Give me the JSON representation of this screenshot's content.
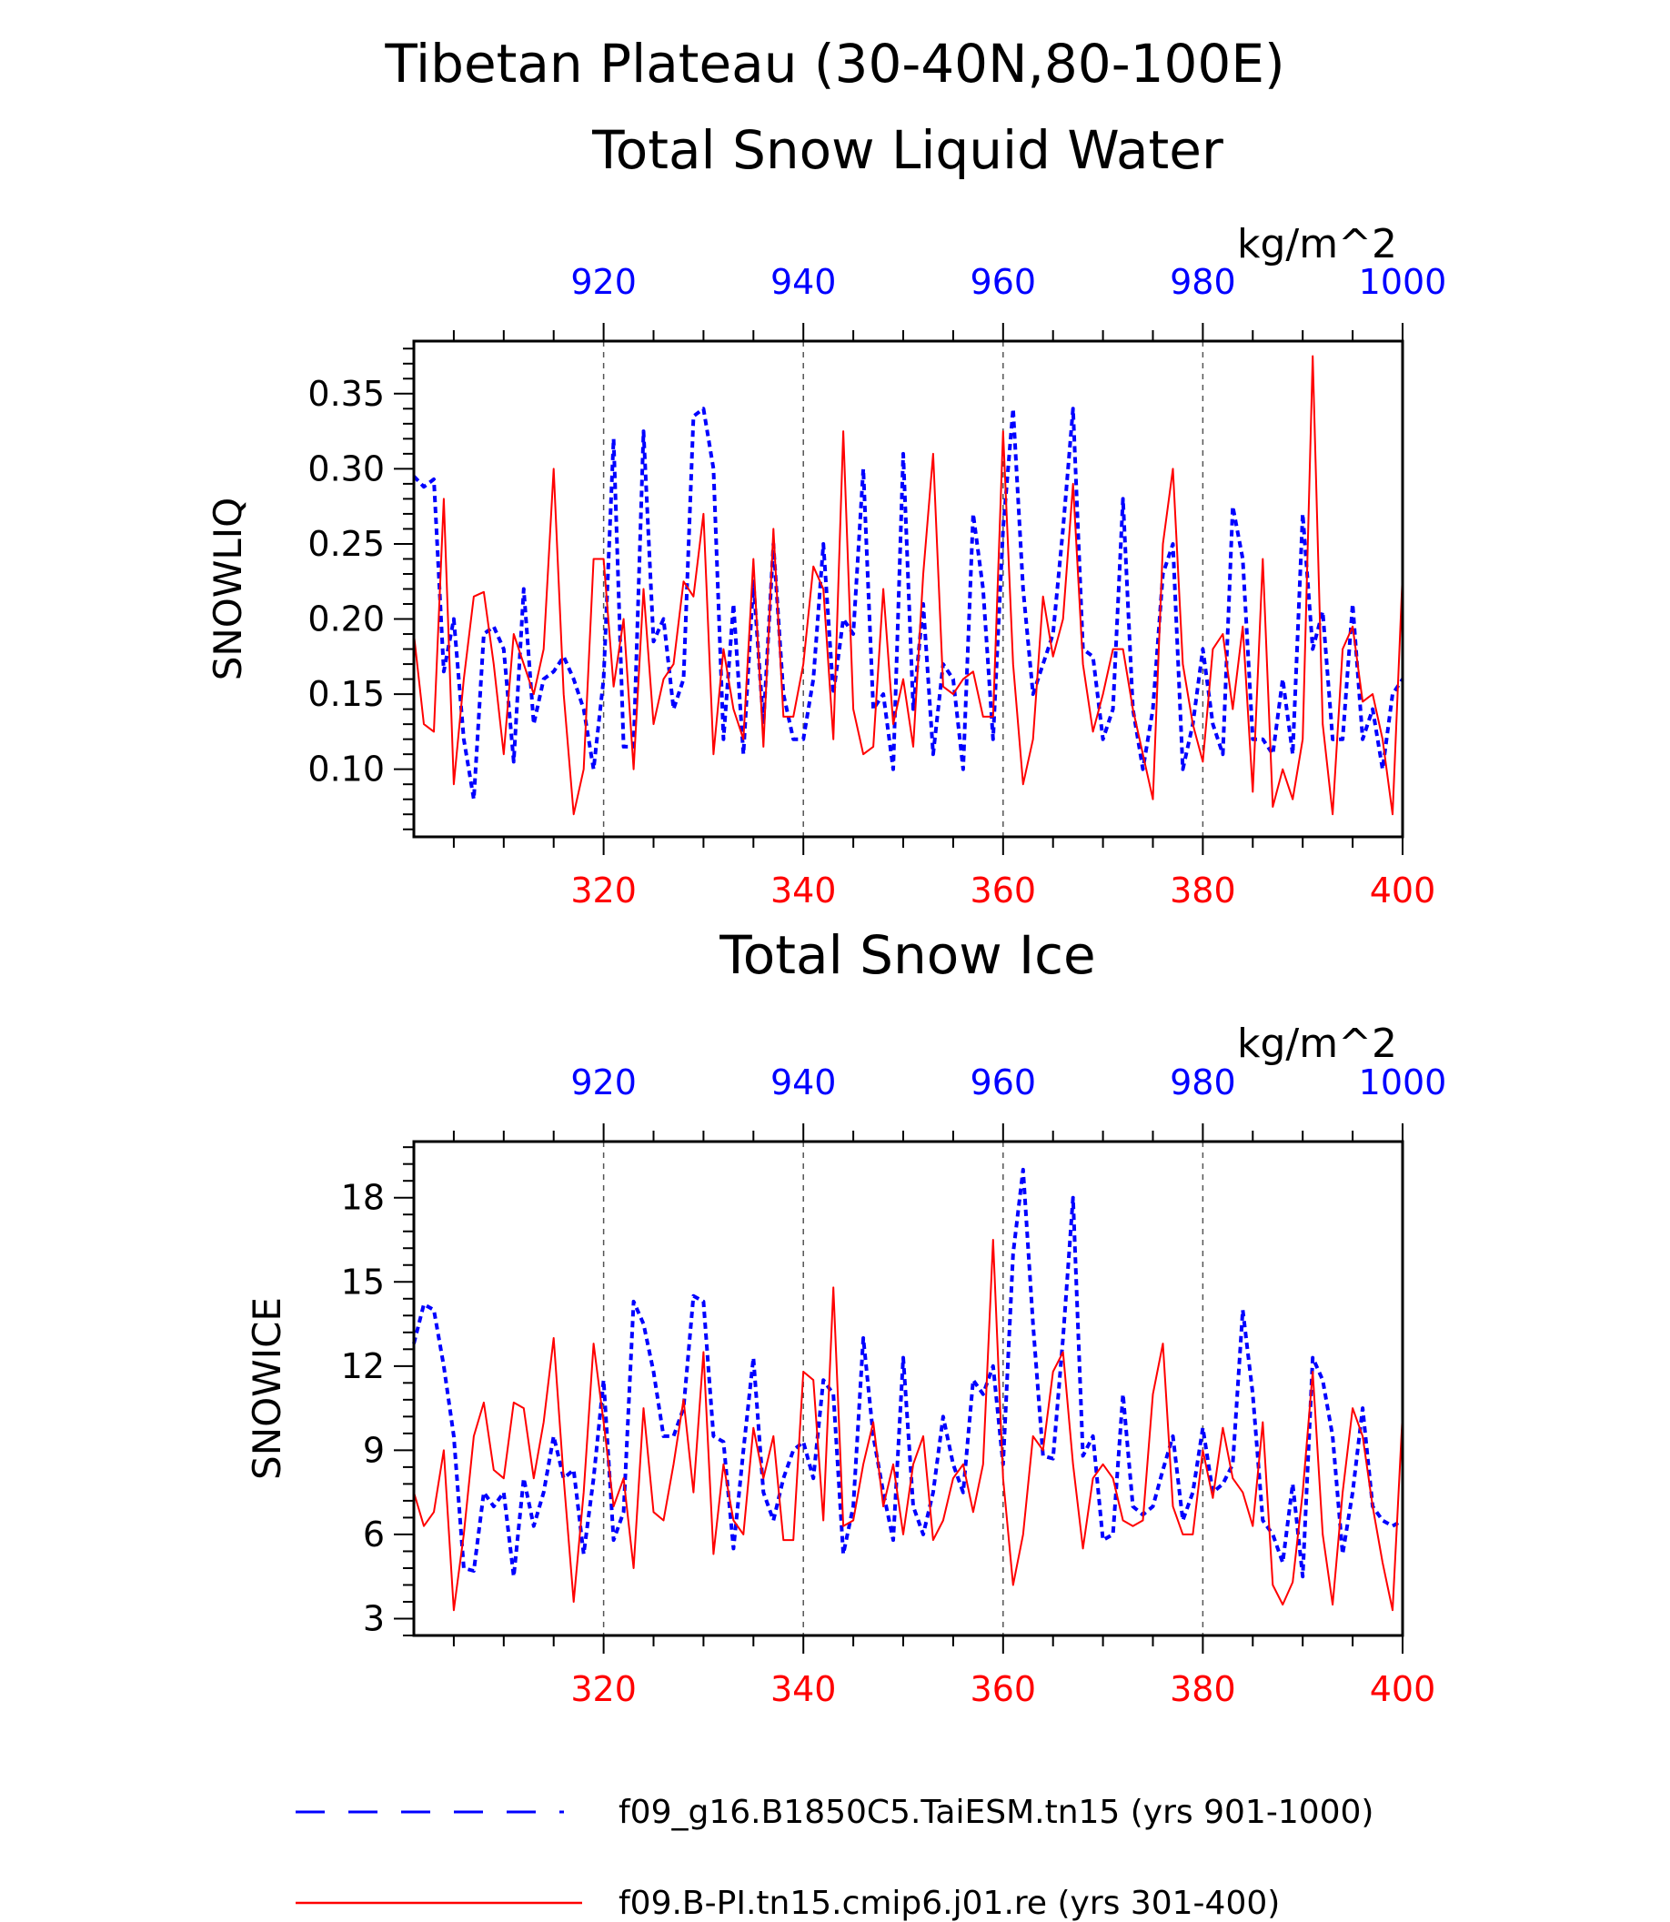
{
  "figure": {
    "title_line1": "Tibetan Plateau (30-40N,80-100E)"
  },
  "colors": {
    "series_blue": "#0000ff",
    "series_red": "#ff0000",
    "axis": "#000000",
    "grid": "#555555"
  },
  "legend": [
    {
      "label": "f09_g16.B1850C5.TaiESM.tn15 (yrs 901-1000)",
      "color": "#0000ff",
      "style": "dashed"
    },
    {
      "label": "f09.B-PI.tn15.cmip6.j01.re (yrs 301-400)",
      "color": "#ff0000",
      "style": "solid"
    }
  ],
  "chart_data": [
    {
      "type": "line",
      "title": "Total Snow Liquid Water",
      "ylabel": "SNOWLIQ",
      "units": "kg/m^2",
      "ylim": [
        0.055,
        0.385
      ],
      "yticks": [
        "0.10",
        "0.15",
        "0.20",
        "0.25",
        "0.30",
        "0.35"
      ],
      "bottom_axis": {
        "xlim": [
          301,
          400
        ],
        "ticks": [
          "320",
          "340",
          "360",
          "380",
          "400"
        ],
        "color": "#ff0000"
      },
      "top_axis": {
        "xlim": [
          901,
          1000
        ],
        "ticks": [
          "920",
          "940",
          "960",
          "980",
          "1000"
        ],
        "color": "#0000ff"
      },
      "grid": "vertical dashed at labeled ticks",
      "series": [
        {
          "name": "f09_g16.B1850C5.TaiESM.tn15 (yrs 901-1000)",
          "color": "#0000ff",
          "style": "dashed",
          "values": [
            0.295,
            0.288,
            0.293,
            0.165,
            0.2,
            0.12,
            0.08,
            0.19,
            0.195,
            0.18,
            0.105,
            0.22,
            0.13,
            0.16,
            0.165,
            0.175,
            0.16,
            0.14,
            0.1,
            0.16,
            0.32,
            0.115,
            0.115,
            0.325,
            0.185,
            0.2,
            0.14,
            0.16,
            0.335,
            0.34,
            0.3,
            0.12,
            0.21,
            0.11,
            0.225,
            0.13,
            0.25,
            0.15,
            0.12,
            0.12,
            0.16,
            0.25,
            0.15,
            0.2,
            0.19,
            0.3,
            0.14,
            0.15,
            0.1,
            0.31,
            0.14,
            0.21,
            0.11,
            0.17,
            0.16,
            0.1,
            0.27,
            0.22,
            0.12,
            0.26,
            0.34,
            0.22,
            0.15,
            0.17,
            0.19,
            0.26,
            0.34,
            0.18,
            0.175,
            0.12,
            0.14,
            0.28,
            0.14,
            0.1,
            0.14,
            0.23,
            0.25,
            0.1,
            0.13,
            0.18,
            0.13,
            0.11,
            0.275,
            0.24,
            0.12,
            0.12,
            0.11,
            0.16,
            0.11,
            0.27,
            0.18,
            0.205,
            0.12,
            0.12,
            0.21,
            0.12,
            0.14,
            0.1,
            0.15,
            0.16
          ]
        },
        {
          "name": "f09.B-PI.tn15.cmip6.j01.re (yrs 301-400)",
          "color": "#ff0000",
          "style": "solid",
          "values": [
            0.19,
            0.13,
            0.125,
            0.28,
            0.09,
            0.16,
            0.215,
            0.218,
            0.17,
            0.11,
            0.19,
            0.17,
            0.15,
            0.18,
            0.3,
            0.15,
            0.07,
            0.1,
            0.24,
            0.24,
            0.155,
            0.2,
            0.1,
            0.22,
            0.13,
            0.16,
            0.17,
            0.225,
            0.215,
            0.27,
            0.11,
            0.18,
            0.14,
            0.12,
            0.24,
            0.115,
            0.26,
            0.135,
            0.135,
            0.17,
            0.235,
            0.22,
            0.12,
            0.325,
            0.14,
            0.11,
            0.115,
            0.22,
            0.13,
            0.16,
            0.115,
            0.23,
            0.31,
            0.155,
            0.15,
            0.16,
            0.165,
            0.135,
            0.135,
            0.325,
            0.17,
            0.09,
            0.12,
            0.215,
            0.175,
            0.2,
            0.29,
            0.17,
            0.125,
            0.15,
            0.18,
            0.18,
            0.14,
            0.11,
            0.08,
            0.25,
            0.3,
            0.17,
            0.13,
            0.105,
            0.18,
            0.19,
            0.14,
            0.195,
            0.085,
            0.24,
            0.075,
            0.1,
            0.08,
            0.12,
            0.375,
            0.13,
            0.07,
            0.18,
            0.195,
            0.145,
            0.15,
            0.12,
            0.07,
            0.23
          ]
        }
      ]
    },
    {
      "type": "line",
      "title": "Total Snow Ice",
      "ylabel": "SNOWICE",
      "units": "kg/m^2",
      "ylim": [
        2.4,
        20.0
      ],
      "yticks": [
        "3",
        "6",
        "9",
        "12",
        "15",
        "18"
      ],
      "bottom_axis": {
        "xlim": [
          301,
          400
        ],
        "ticks": [
          "320",
          "340",
          "360",
          "380",
          "400"
        ],
        "color": "#ff0000"
      },
      "top_axis": {
        "xlim": [
          901,
          1000
        ],
        "ticks": [
          "920",
          "940",
          "960",
          "980",
          "1000"
        ],
        "color": "#0000ff"
      },
      "grid": "vertical dashed at labeled ticks",
      "series": [
        {
          "name": "f09_g16.B1850C5.TaiESM.tn15 (yrs 901-1000)",
          "color": "#0000ff",
          "style": "dashed",
          "values": [
            12.8,
            14.2,
            14.0,
            12.0,
            9.5,
            4.8,
            4.7,
            7.5,
            7.0,
            7.5,
            4.5,
            8.0,
            6.3,
            7.5,
            9.5,
            8.0,
            8.3,
            5.3,
            8.0,
            11.5,
            5.8,
            6.8,
            14.3,
            13.5,
            11.8,
            9.5,
            9.5,
            10.5,
            14.5,
            14.3,
            9.5,
            9.3,
            5.5,
            9.0,
            12.3,
            7.5,
            6.5,
            8.0,
            9.0,
            9.3,
            8.0,
            11.5,
            11.0,
            5.3,
            7.0,
            13.0,
            9.5,
            7.5,
            5.8,
            12.3,
            7.0,
            6.0,
            7.5,
            10.2,
            8.5,
            7.5,
            11.5,
            11.0,
            12.0,
            8.5,
            16.0,
            19.0,
            13.5,
            8.8,
            8.7,
            13.0,
            18.0,
            8.8,
            9.5,
            5.8,
            6.0,
            11.0,
            7.0,
            6.7,
            7.0,
            8.3,
            9.5,
            6.5,
            7.5,
            9.8,
            7.5,
            7.8,
            8.5,
            14.0,
            11.0,
            6.5,
            6.0,
            5.0,
            7.8,
            4.5,
            12.3,
            11.5,
            9.5,
            5.3,
            7.5,
            10.5,
            7.0,
            6.5,
            6.3,
            6.5
          ]
        },
        {
          "name": "f09.B-PI.tn15.cmip6.j01.re (yrs 301-400)",
          "color": "#ff0000",
          "style": "solid",
          "values": [
            7.5,
            6.3,
            6.8,
            9.0,
            3.3,
            6.0,
            9.5,
            10.7,
            8.3,
            8.0,
            10.7,
            10.5,
            8.0,
            10.0,
            13.0,
            8.0,
            3.6,
            7.5,
            12.8,
            10.0,
            7.0,
            8.0,
            4.8,
            10.5,
            6.8,
            6.5,
            8.5,
            10.8,
            7.5,
            12.5,
            5.3,
            8.5,
            6.5,
            6.0,
            9.8,
            8.0,
            9.5,
            5.8,
            5.8,
            11.8,
            11.5,
            6.5,
            14.8,
            6.3,
            6.5,
            8.5,
            10.0,
            7.0,
            8.5,
            6.0,
            8.5,
            9.5,
            5.8,
            6.5,
            8.0,
            8.5,
            6.8,
            8.5,
            16.5,
            8.0,
            4.2,
            6.0,
            9.5,
            9.0,
            11.8,
            12.5,
            8.5,
            5.5,
            8.0,
            8.5,
            8.0,
            6.5,
            6.3,
            6.5,
            11.0,
            12.8,
            7.0,
            6.0,
            6.0,
            9.0,
            7.3,
            9.8,
            8.0,
            7.5,
            6.3,
            10.0,
            4.2,
            3.5,
            4.3,
            7.5,
            11.8,
            6.0,
            3.5,
            7.5,
            10.5,
            9.5,
            7.0,
            5.0,
            3.3,
            10.3
          ]
        }
      ]
    }
  ]
}
